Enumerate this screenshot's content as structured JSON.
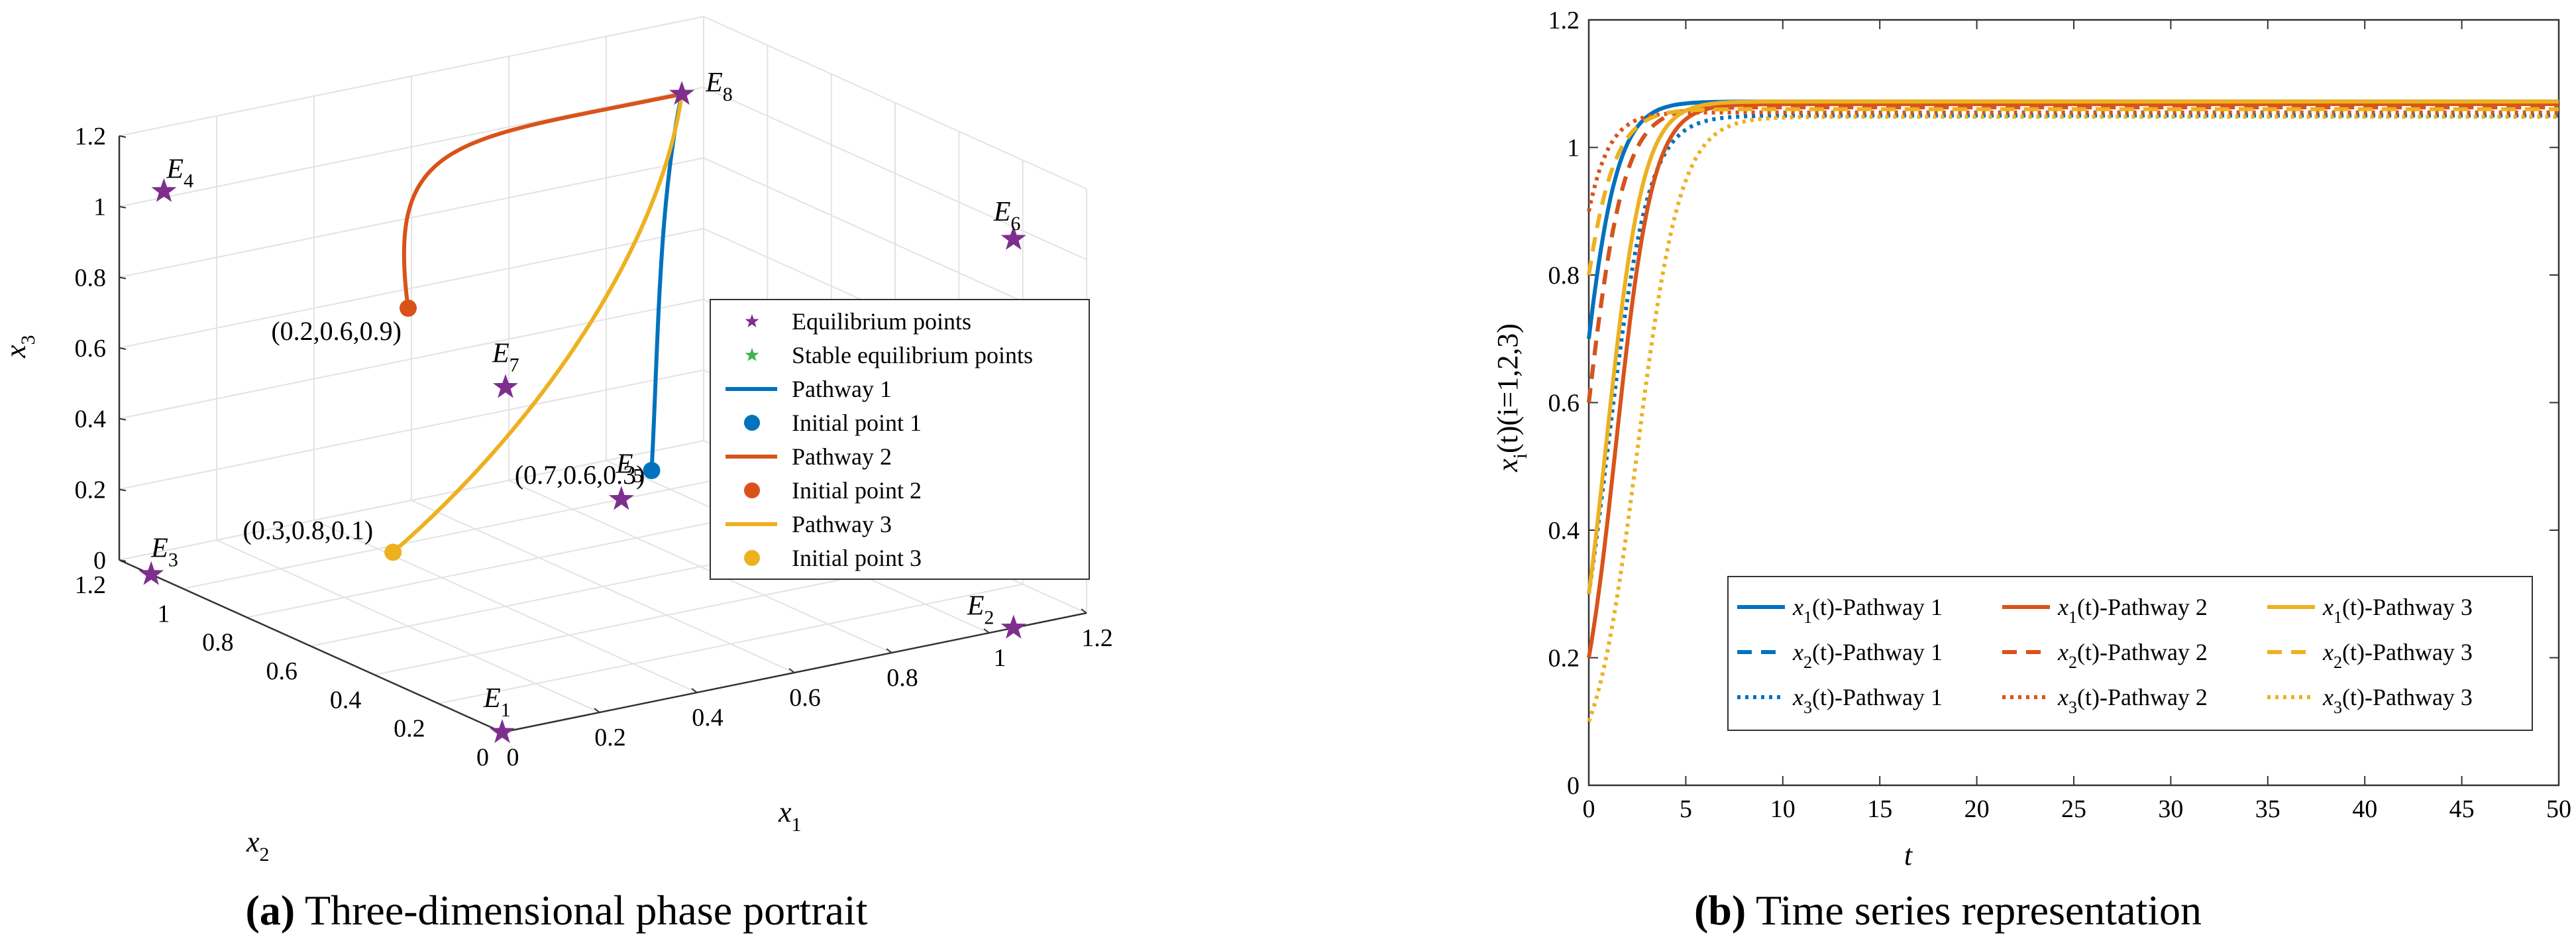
{
  "chart_data": [
    {
      "type": "scatter",
      "panel": "a",
      "caption_label": "(a)",
      "caption_text": " Three-dimensional phase portrait",
      "xlabel": "x",
      "xlabel_sub": "1",
      "ylabel": "x",
      "ylabel_sub": "2",
      "zlabel": "x",
      "zlabel_sub": "3",
      "xlim": [
        0,
        1.2
      ],
      "ylim": [
        0,
        1.2
      ],
      "zlim": [
        0,
        1.2
      ],
      "x_ticks": [
        "0",
        "0.2",
        "0.4",
        "0.6",
        "0.8",
        "1",
        "1.2"
      ],
      "y_ticks": [
        "0",
        "0.2",
        "0.4",
        "0.6",
        "0.8",
        "1",
        "1.2"
      ],
      "z_ticks": [
        "0",
        "0.2",
        "0.4",
        "0.6",
        "0.8",
        "1",
        "1.2"
      ],
      "equilibria": [
        {
          "name": "E",
          "sub": "1",
          "x": 0,
          "y": 0,
          "z": 0
        },
        {
          "name": "E",
          "sub": "2",
          "x": 1.05,
          "y": 0,
          "z": 0
        },
        {
          "name": "E",
          "sub": "3",
          "x": 0,
          "y": 1.1,
          "z": 0
        },
        {
          "name": "E",
          "sub": "4",
          "x": 0,
          "y": 1.06,
          "z": 1.1
        },
        {
          "name": "E",
          "sub": "5",
          "x": 0.9,
          "y": 1.0,
          "z": 0
        },
        {
          "name": "E",
          "sub": "6",
          "x": 1.05,
          "y": 0,
          "z": 1.1
        },
        {
          "name": "E",
          "sub": "7",
          "x": 0.4,
          "y": 0.6,
          "z": 0.62
        },
        {
          "name": "E",
          "sub": "8",
          "x": 1.07,
          "y": 1.07,
          "z": 1.07
        }
      ],
      "initial_points": [
        {
          "label": "(0.7,0.6,0.3)",
          "x": 0.7,
          "y": 0.6,
          "z": 0.3,
          "color": "#0072BD"
        },
        {
          "label": "(0.2,0.6,0.9)",
          "x": 0.2,
          "y": 0.6,
          "z": 0.9,
          "color": "#D95319"
        },
        {
          "label": "(0.3,0.8,0.1)",
          "x": 0.3,
          "y": 0.8,
          "z": 0.1,
          "color": "#EDB120"
        }
      ],
      "legend": [
        {
          "kind": "star",
          "color": "#7E2F8E",
          "text": "Equilibrium points"
        },
        {
          "kind": "star",
          "color": "#3CB44B",
          "text": "Stable equilibrium points"
        },
        {
          "kind": "line",
          "color": "#0072BD",
          "text": "Pathway 1"
        },
        {
          "kind": "dot",
          "color": "#0072BD",
          "text": "Initial point 1"
        },
        {
          "kind": "line",
          "color": "#D95319",
          "text": "Pathway 2"
        },
        {
          "kind": "dot",
          "color": "#D95319",
          "text": "Initial point 2"
        },
        {
          "kind": "line",
          "color": "#EDB120",
          "text": "Pathway 3"
        },
        {
          "kind": "dot",
          "color": "#EDB120",
          "text": "Initial point 3"
        }
      ],
      "legend_position": "right"
    },
    {
      "type": "line",
      "panel": "b",
      "caption_label": "(b)",
      "caption_text": " Time series representation",
      "xlabel": "t",
      "ylabel_parts": [
        "x",
        "i",
        "(t)(i=1,2,3)"
      ],
      "xlim": [
        0,
        50
      ],
      "ylim": [
        0,
        1.2
      ],
      "x_ticks": [
        0,
        5,
        10,
        15,
        20,
        25,
        30,
        35,
        40,
        45,
        50
      ],
      "y_ticks": [
        0,
        0.2,
        0.4,
        0.6,
        0.8,
        1,
        1.2
      ],
      "y_tick_labels": [
        "0",
        "0.2",
        "0.4",
        "0.6",
        "0.8",
        "1",
        "1.2"
      ],
      "series": [
        {
          "var": "x",
          "sub": "1",
          "name": "(t)-Pathway 1",
          "color": "#0072BD",
          "style": "solid",
          "x0": 0.7,
          "final": 1.072,
          "rate": 1.05
        },
        {
          "var": "x",
          "sub": "2",
          "name": "(t)-Pathway 1",
          "color": "#0072BD",
          "style": "dashed",
          "x0": 0.6,
          "final": 1.063,
          "rate": 1.0
        },
        {
          "var": "x",
          "sub": "3",
          "name": "(t)-Pathway 1",
          "color": "#0072BD",
          "style": "dotted",
          "x0": 0.3,
          "final": 1.05,
          "rate": 0.95
        },
        {
          "var": "x",
          "sub": "1",
          "name": "(t)-Pathway 2",
          "color": "#D95319",
          "style": "solid",
          "x0": 0.2,
          "final": 1.068,
          "rate": 1.05
        },
        {
          "var": "x",
          "sub": "2",
          "name": "(t)-Pathway 2",
          "color": "#D95319",
          "style": "dashed",
          "x0": 0.6,
          "final": 1.063,
          "rate": 1.0
        },
        {
          "var": "x",
          "sub": "3",
          "name": "(t)-Pathway 2",
          "color": "#D95319",
          "style": "dotted",
          "x0": 0.9,
          "final": 1.055,
          "rate": 1.1
        },
        {
          "var": "x",
          "sub": "1",
          "name": "(t)-Pathway 3",
          "color": "#EDB120",
          "style": "solid",
          "x0": 0.3,
          "final": 1.072,
          "rate": 1.05
        },
        {
          "var": "x",
          "sub": "2",
          "name": "(t)-Pathway 3",
          "color": "#EDB120",
          "style": "dashed",
          "x0": 0.8,
          "final": 1.06,
          "rate": 1.0
        },
        {
          "var": "x",
          "sub": "3",
          "name": "(t)-Pathway 3",
          "color": "#EDB120",
          "style": "dotted",
          "x0": 0.1,
          "final": 1.048,
          "rate": 0.9
        }
      ],
      "legend_position": "lower-right"
    }
  ]
}
